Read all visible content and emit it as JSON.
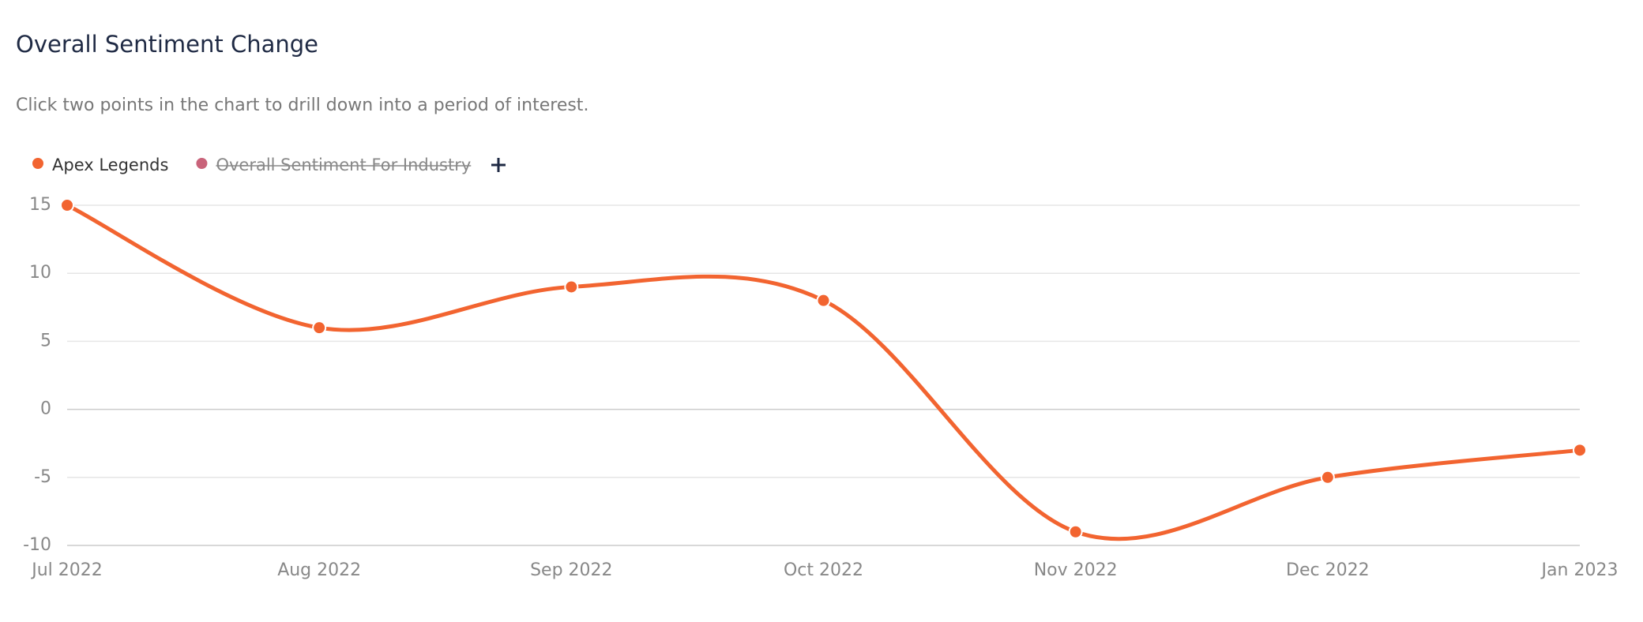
{
  "chart_data": {
    "type": "line",
    "title": "Overall Sentiment Change",
    "subtitle": "Click two points in the chart to drill down into a period of interest.",
    "categories": [
      "Jul 2022",
      "Aug 2022",
      "Sep 2022",
      "Oct 2022",
      "Nov 2022",
      "Dec 2022",
      "Jan 2023"
    ],
    "series": [
      {
        "name": "Apex Legends",
        "color": "#f26430",
        "values": [
          15,
          6,
          9,
          8,
          -9,
          -5,
          -3
        ]
      },
      {
        "name": "Overall Sentiment For Industry",
        "color": "#c9637a",
        "visible": false
      }
    ],
    "ylim": [
      -10,
      15
    ],
    "yticks": [
      -10,
      -5,
      0,
      5,
      10,
      15
    ],
    "grid": true,
    "smooth": true
  }
}
